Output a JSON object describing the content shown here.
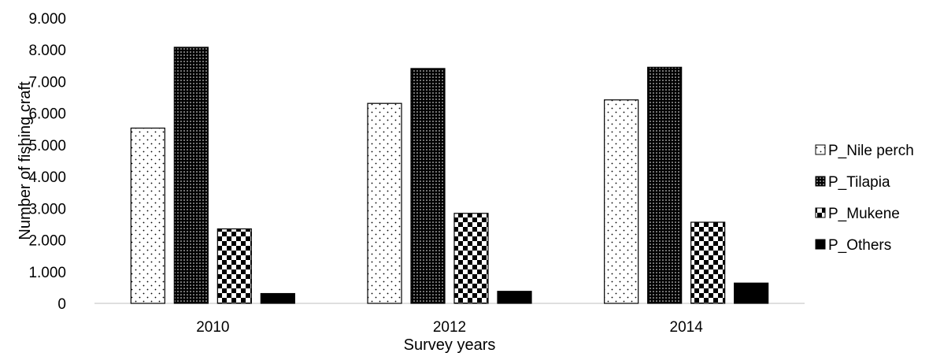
{
  "chart_data": {
    "type": "bar",
    "categories": [
      "2010",
      "2012",
      "2014"
    ],
    "series": [
      {
        "name": "P_Nile perch",
        "values": [
          5530,
          6310,
          6420
        ],
        "pattern": "sparse-dots"
      },
      {
        "name": "P_Tilapia",
        "values": [
          8080,
          7410,
          7450
        ],
        "pattern": "dense-dots"
      },
      {
        "name": "P_Mukene",
        "values": [
          2350,
          2840,
          2560
        ],
        "pattern": "checkerboard"
      },
      {
        "name": "P_Others",
        "values": [
          310,
          380,
          640
        ],
        "pattern": "solid"
      }
    ],
    "yticks": [
      "0",
      "1.000",
      "2.000",
      "3.000",
      "4.000",
      "5.000",
      "6.000",
      "7.000",
      "8.000",
      "9.000"
    ],
    "ylim": [
      0,
      9000
    ],
    "xlabel": "Survey years",
    "ylabel": "Number of fishing craft",
    "legend_position": "right",
    "grid": false
  }
}
